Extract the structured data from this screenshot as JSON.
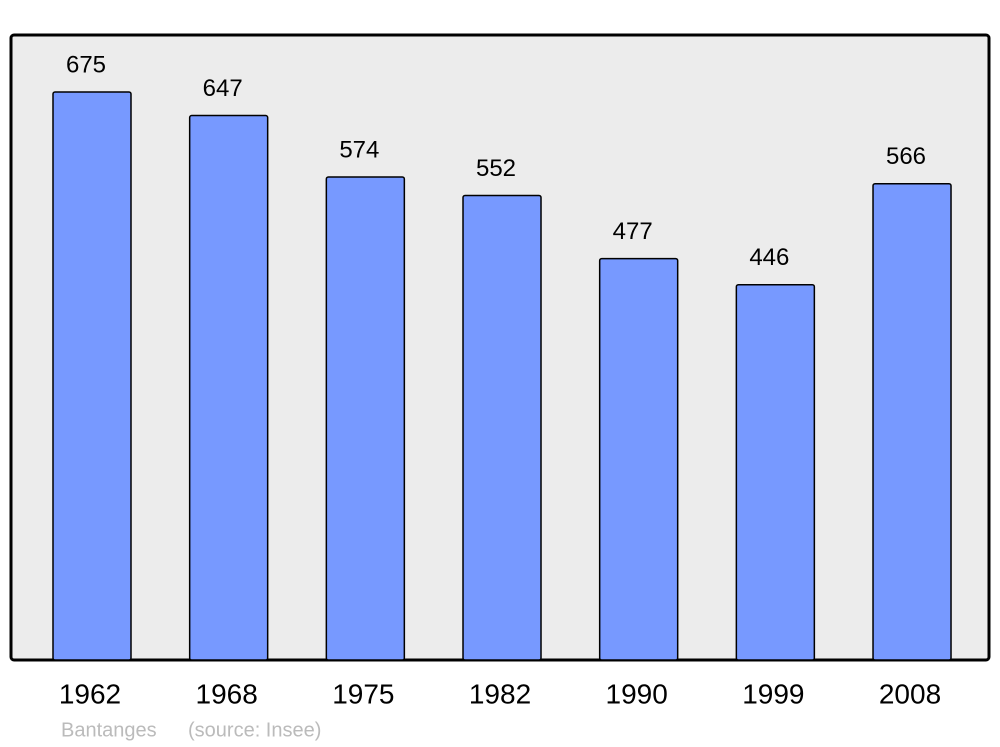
{
  "chart_data": {
    "type": "bar",
    "categories": [
      "1962",
      "1968",
      "1975",
      "1982",
      "1990",
      "1999",
      "2008"
    ],
    "values": [
      675,
      647,
      574,
      552,
      477,
      446,
      566
    ],
    "color": "#7799ff",
    "caption": "Bantanges",
    "source": "(source: Insee)"
  }
}
